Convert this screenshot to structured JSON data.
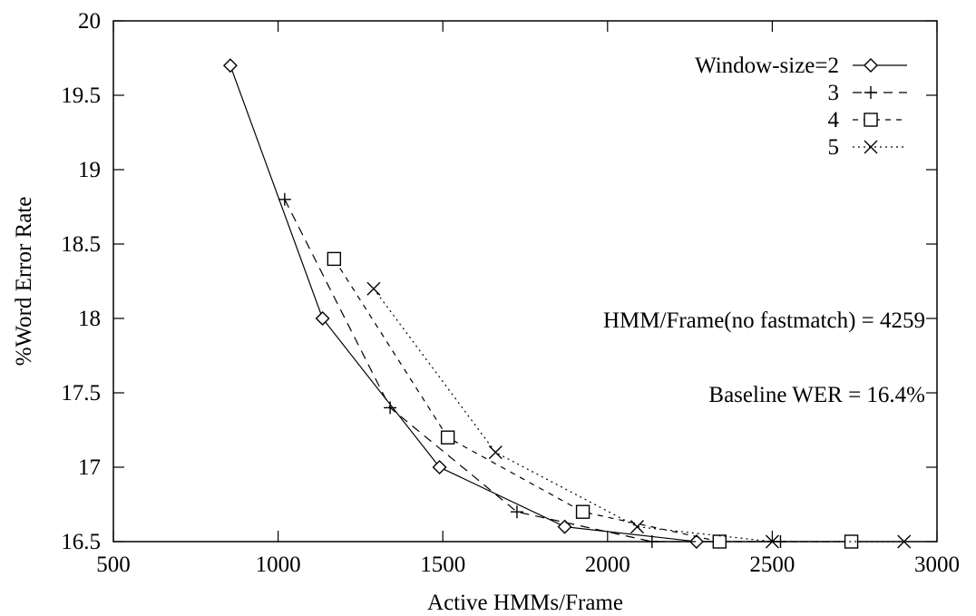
{
  "chart_data": {
    "type": "line",
    "xlabel": "Active HMMs/Frame",
    "ylabel": "%Word Error Rate",
    "xlim": [
      500,
      3000
    ],
    "ylim": [
      16.5,
      20
    ],
    "xticks": [
      500,
      1000,
      1500,
      2000,
      2500,
      3000
    ],
    "yticks": [
      16.5,
      17,
      17.5,
      18,
      18.5,
      19,
      19.5,
      20
    ],
    "ytick_labels": [
      "16.5",
      "17",
      "17.5",
      "18",
      "18.5",
      "19",
      "19.5",
      "20"
    ],
    "grid": false,
    "legend_position": "top-right",
    "series": [
      {
        "name": "Window-size=2",
        "marker": "diamond",
        "dash": "solid",
        "x": [
          855,
          1135,
          1490,
          1870,
          2270
        ],
        "y": [
          19.7,
          18.0,
          17.0,
          16.6,
          16.5
        ]
      },
      {
        "name": "3",
        "marker": "plus",
        "dash": "dashed",
        "x": [
          1020,
          1340,
          1725,
          2135,
          2525
        ],
        "y": [
          18.8,
          17.4,
          16.7,
          16.5,
          16.5
        ]
      },
      {
        "name": "4",
        "marker": "square",
        "dash": "short-dashed",
        "x": [
          1170,
          1515,
          1925,
          2340,
          2740
        ],
        "y": [
          18.4,
          17.2,
          16.7,
          16.5,
          16.5
        ]
      },
      {
        "name": "5",
        "marker": "cross",
        "dash": "dotted",
        "x": [
          1290,
          1660,
          2090,
          2500,
          2900
        ],
        "y": [
          18.2,
          17.1,
          16.6,
          16.5,
          16.5
        ]
      }
    ],
    "annotations": [
      "HMM/Frame(no fastmatch) = 4259",
      "Baseline WER = 16.4%"
    ]
  }
}
